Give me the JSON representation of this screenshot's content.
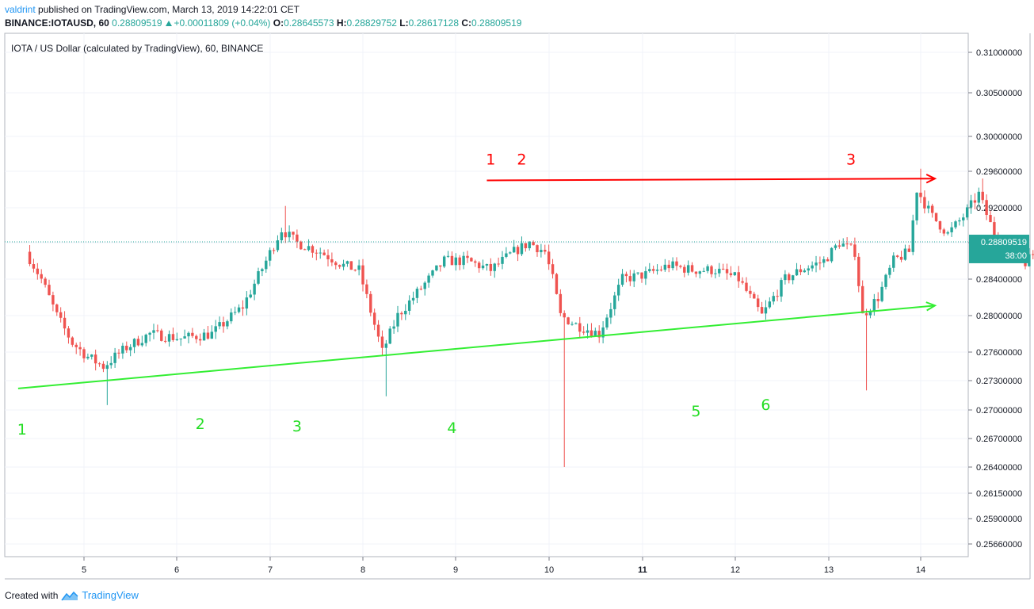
{
  "header": {
    "user": "valdrint",
    "published_text": "published on TradingView.com, March 13, 2019 14:22:01 CET",
    "symbol_line": "BINANCE:IOTAUSD, 60",
    "last": "0.28809519",
    "change": "+0.00011809 (+0.04%)",
    "open_label": "O:",
    "open": "0.28645573",
    "high_label": "H:",
    "high": "0.28829752",
    "low_label": "L:",
    "low": "0.28617128",
    "close_label": "C:",
    "close": "0.28809519"
  },
  "footer": {
    "created_with": "Created with",
    "brand": "TradingView"
  },
  "colors": {
    "up": "#26a69a",
    "down": "#ef5350",
    "resistance": "#ff0000",
    "support": "#33ee33",
    "label_red": "#ff0000",
    "label_green": "#22dd22",
    "price_tag": "#26a69a"
  },
  "chart_data": {
    "type": "candlestick",
    "title": "IOTA / US Dollar (calculated by TradingView), 60, BINANCE",
    "y_ticks": [
      0.31,
      0.305,
      0.3,
      0.296,
      0.292,
      0.288,
      0.284,
      0.28,
      0.276,
      0.273,
      0.27,
      0.267,
      0.264,
      0.2615,
      0.259,
      0.2566
    ],
    "y_tick_labels": [
      "0.31000000",
      "0.30500000",
      "0.30000000",
      "0.29600000",
      "0.29200000",
      "0.28800000",
      "0.28400000",
      "0.28000000",
      "0.27600000",
      "0.27300000",
      "0.27000000",
      "0.26700000",
      "0.26400000",
      "0.26150000",
      "0.25900000",
      "0.25660000"
    ],
    "x_ticks": [
      "5",
      "6",
      "7",
      "8",
      "9",
      "10",
      "11",
      "12",
      "13",
      "14"
    ],
    "x_tick_bold": [
      "11"
    ],
    "last_price_label": "0.28809519",
    "countdown_label": "38:00",
    "grid": true,
    "resistance": {
      "from": [
        "Mar 9 08:00",
        0.295
      ],
      "to": [
        "Mar 14 00:00",
        0.2952
      ]
    },
    "support": {
      "from": [
        "Mar 4 07:00",
        0.2722
      ],
      "to": [
        "Mar 14 00:00",
        0.2811
      ]
    },
    "red_labels": [
      {
        "text": "1",
        "near": "Mar 9 09:00"
      },
      {
        "text": "2",
        "near": "Mar 9 17:00"
      },
      {
        "text": "3",
        "near": "Mar 13 06:00"
      }
    ],
    "green_labels": [
      {
        "text": "1",
        "near": "Mar 4 08:00"
      },
      {
        "text": "2",
        "near": "Mar 6 06:00"
      },
      {
        "text": "3",
        "near": "Mar 7 07:00"
      },
      {
        "text": "4",
        "near": "Mar 8 23:00"
      },
      {
        "text": "5",
        "near": "Mar 11 14:00"
      },
      {
        "text": "6",
        "near": "Mar 12 08:00"
      }
    ],
    "anchors": [
      {
        "t": 0,
        "v": 0.287,
        "lo": 0.2862
      },
      {
        "t": 4,
        "v": 0.284
      },
      {
        "t": 8,
        "v": 0.28
      },
      {
        "t": 12,
        "v": 0.277
      },
      {
        "t": 16,
        "v": 0.2755
      },
      {
        "t": 20,
        "v": 0.2745,
        "lo": 0.2705
      },
      {
        "t": 26,
        "v": 0.2765
      },
      {
        "t": 32,
        "v": 0.278
      },
      {
        "t": 40,
        "v": 0.2775
      },
      {
        "t": 48,
        "v": 0.278
      },
      {
        "t": 56,
        "v": 0.281
      },
      {
        "t": 62,
        "v": 0.286
      },
      {
        "t": 66,
        "v": 0.2895,
        "hi": 0.2922
      },
      {
        "t": 70,
        "v": 0.288
      },
      {
        "t": 76,
        "v": 0.287
      },
      {
        "t": 82,
        "v": 0.2855
      },
      {
        "t": 86,
        "v": 0.285
      },
      {
        "t": 90,
        "v": 0.279
      },
      {
        "t": 92,
        "v": 0.276,
        "lo": 0.2714
      },
      {
        "t": 96,
        "v": 0.28
      },
      {
        "t": 102,
        "v": 0.283
      },
      {
        "t": 108,
        "v": 0.286
      },
      {
        "t": 114,
        "v": 0.286
      },
      {
        "t": 120,
        "v": 0.285
      },
      {
        "t": 126,
        "v": 0.287
      },
      {
        "t": 130,
        "v": 0.288
      },
      {
        "t": 134,
        "v": 0.287
      },
      {
        "t": 136,
        "v": 0.284
      },
      {
        "t": 138,
        "v": 0.28,
        "lo": 0.264
      },
      {
        "t": 142,
        "v": 0.279
      },
      {
        "t": 148,
        "v": 0.278
      },
      {
        "t": 154,
        "v": 0.284
      },
      {
        "t": 160,
        "v": 0.2845
      },
      {
        "t": 166,
        "v": 0.2855
      },
      {
        "t": 172,
        "v": 0.285
      },
      {
        "t": 178,
        "v": 0.285
      },
      {
        "t": 184,
        "v": 0.284
      },
      {
        "t": 190,
        "v": 0.28
      },
      {
        "t": 196,
        "v": 0.284
      },
      {
        "t": 200,
        "v": 0.285
      },
      {
        "t": 206,
        "v": 0.286
      },
      {
        "t": 210,
        "v": 0.288
      },
      {
        "t": 214,
        "v": 0.287
      },
      {
        "t": 216,
        "v": 0.28,
        "lo": 0.272
      },
      {
        "t": 220,
        "v": 0.282
      },
      {
        "t": 224,
        "v": 0.286
      },
      {
        "t": 228,
        "v": 0.287
      },
      {
        "t": 230,
        "v": 0.294,
        "hi": 0.2963
      },
      {
        "t": 234,
        "v": 0.291
      },
      {
        "t": 238,
        "v": 0.289
      },
      {
        "t": 242,
        "v": 0.291
      },
      {
        "t": 246,
        "v": 0.2935,
        "hi": 0.2952
      },
      {
        "t": 250,
        "v": 0.289
      },
      {
        "t": 254,
        "v": 0.287
      },
      {
        "t": 258,
        "v": 0.286
      },
      {
        "t": 262,
        "v": 0.2875
      },
      {
        "t": 266,
        "v": 0.288
      },
      {
        "t": 272,
        "v": 0.286
      },
      {
        "t": 278,
        "v": 0.285
      },
      {
        "t": 284,
        "v": 0.284
      },
      {
        "t": 290,
        "v": 0.286
      },
      {
        "t": 296,
        "v": 0.287
      },
      {
        "t": 302,
        "v": 0.2885
      },
      {
        "t": 308,
        "v": 0.29
      },
      {
        "t": 312,
        "v": 0.2912
      },
      {
        "t": 316,
        "v": 0.288
      },
      {
        "t": 320,
        "v": 0.285
      },
      {
        "t": 324,
        "v": 0.283
      },
      {
        "t": 328,
        "v": 0.282
      },
      {
        "t": 332,
        "v": 0.279,
        "lo": 0.276
      },
      {
        "t": 336,
        "v": 0.281
      },
      {
        "t": 342,
        "v": 0.282
      },
      {
        "t": 348,
        "v": 0.281
      },
      {
        "t": 354,
        "v": 0.2815
      },
      {
        "t": 358,
        "v": 0.2795
      },
      {
        "t": 362,
        "v": 0.279,
        "lo": 0.2785
      },
      {
        "t": 366,
        "v": 0.28
      },
      {
        "t": 370,
        "v": 0.281
      },
      {
        "t": 372,
        "v": 0.284
      },
      {
        "t": 376,
        "v": 0.288
      },
      {
        "t": 380,
        "v": 0.2895
      },
      {
        "t": 386,
        "v": 0.288
      },
      {
        "t": 392,
        "v": 0.2875
      },
      {
        "t": 398,
        "v": 0.289
      },
      {
        "t": 404,
        "v": 0.288
      },
      {
        "t": 408,
        "v": 0.289
      },
      {
        "t": 412,
        "v": 0.292
      },
      {
        "t": 414,
        "v": 0.2935,
        "hi": 0.2954
      },
      {
        "t": 418,
        "v": 0.292
      },
      {
        "t": 422,
        "v": 0.29
      },
      {
        "t": 426,
        "v": 0.288
      },
      {
        "t": 428,
        "v": 0.285,
        "lo": 0.2835
      },
      {
        "t": 431,
        "v": 0.2865
      },
      {
        "t": 433,
        "v": 0.2881
      }
    ]
  }
}
